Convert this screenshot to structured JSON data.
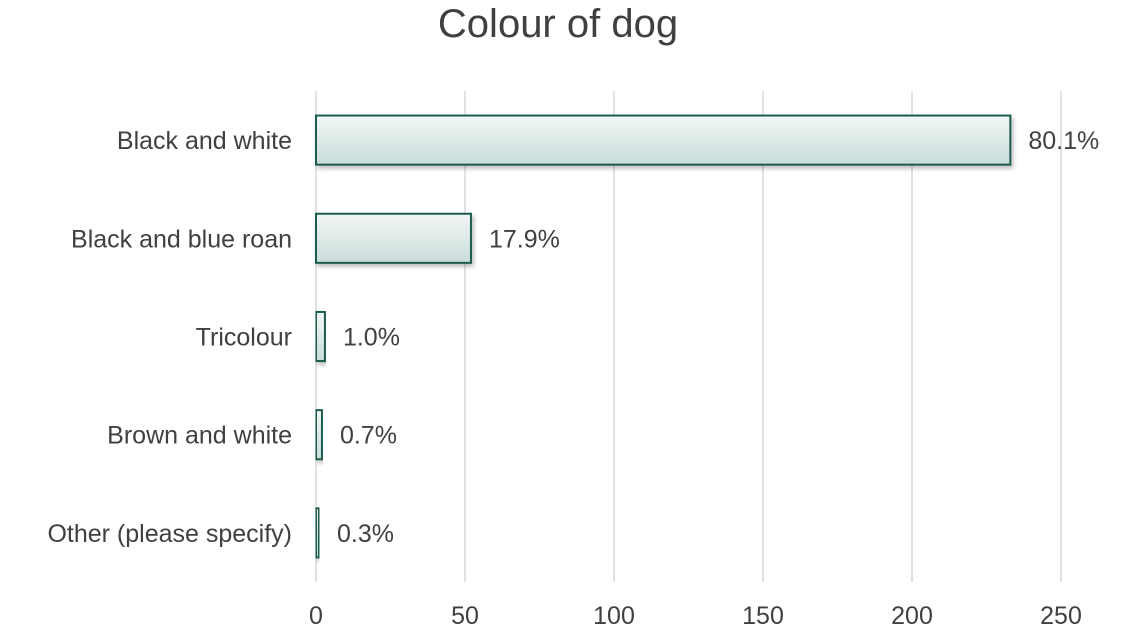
{
  "chart_data": {
    "type": "bar",
    "orientation": "horizontal",
    "title": "Colour of dog",
    "xlabel": "",
    "ylabel": "",
    "categories": [
      "Black and white",
      "Black and blue roan",
      "Tricolour",
      "Brown and white",
      "Other (please specify)"
    ],
    "values": [
      233,
      52,
      3,
      2,
      1
    ],
    "value_labels": [
      "80.1%",
      "17.9%",
      "1.0%",
      "0.7%",
      "0.3%"
    ],
    "xlim": [
      0,
      250
    ],
    "xticks": [
      0,
      50,
      100,
      150,
      200,
      250
    ],
    "grid": "vertical",
    "legend": "none",
    "colors": {
      "bar_fill_top": "#f2f7f6",
      "bar_fill_bottom": "#c9dcd9",
      "bar_stroke": "#1e5c50",
      "grid": "#d9d9d9",
      "text": "#404040"
    }
  }
}
